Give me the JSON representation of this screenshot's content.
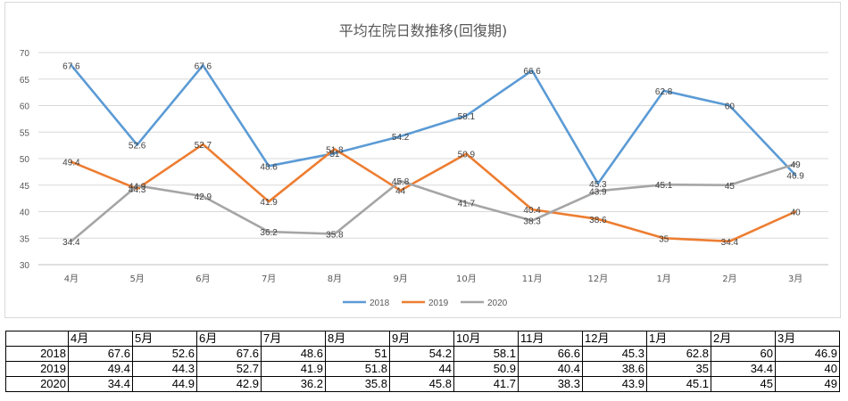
{
  "chart_data": {
    "type": "line",
    "title": "平均在院日数推移(回復期)",
    "categories": [
      "4月",
      "5月",
      "6月",
      "7月",
      "8月",
      "9月",
      "10月",
      "11月",
      "12月",
      "1月",
      "2月",
      "3月"
    ],
    "series": [
      {
        "name": "2018",
        "color": "#5b9bd5",
        "values": [
          67.6,
          52.6,
          67.6,
          48.6,
          51,
          54.2,
          58.1,
          66.6,
          45.3,
          62.8,
          60,
          46.9
        ]
      },
      {
        "name": "2019",
        "color": "#ed7d31",
        "values": [
          49.4,
          44.3,
          52.7,
          41.9,
          51.8,
          44,
          50.9,
          40.4,
          38.6,
          35,
          34.4,
          40
        ]
      },
      {
        "name": "2020",
        "color": "#a5a5a5",
        "values": [
          34.4,
          44.9,
          42.9,
          36.2,
          35.8,
          45.8,
          41.7,
          38.3,
          43.9,
          45.1,
          45,
          49
        ]
      }
    ],
    "y_ticks": [
      "30",
      "35",
      "40",
      "45",
      "50",
      "55",
      "60",
      "65",
      "70"
    ],
    "ylim": [
      30,
      70
    ],
    "grid": true,
    "legend_position": "bottom"
  },
  "table": {
    "corner": "",
    "headers": [
      "4月",
      "5月",
      "6月",
      "7月",
      "8月",
      "9月",
      "10月",
      "11月",
      "12月",
      "1月",
      "2月",
      "3月"
    ],
    "rows": [
      {
        "label": "2018",
        "cells": [
          "67.6",
          "52.6",
          "67.6",
          "48.6",
          "51",
          "54.2",
          "58.1",
          "66.6",
          "45.3",
          "62.8",
          "60",
          "46.9"
        ]
      },
      {
        "label": "2019",
        "cells": [
          "49.4",
          "44.3",
          "52.7",
          "41.9",
          "51.8",
          "44",
          "50.9",
          "40.4",
          "38.6",
          "35",
          "34.4",
          "40"
        ]
      },
      {
        "label": "2020",
        "cells": [
          "34.4",
          "44.9",
          "42.9",
          "36.2",
          "35.8",
          "45.8",
          "41.7",
          "38.3",
          "43.9",
          "45.1",
          "45",
          "49"
        ]
      }
    ]
  }
}
